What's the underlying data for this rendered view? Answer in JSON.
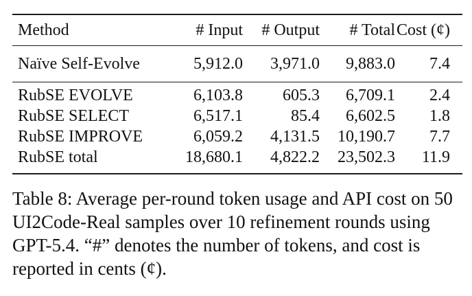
{
  "table": {
    "columns": [
      "Method",
      "# Input",
      "# Output",
      "# Total",
      "Cost (¢)"
    ],
    "group1": [
      {
        "method": "Naïve Self-Evolve",
        "input": "5,912.0",
        "output": "3,971.0",
        "total": "9,883.0",
        "cost": "7.4"
      }
    ],
    "group2": [
      {
        "method": "RubSE EVOLVE",
        "input": "6,103.8",
        "output": "605.3",
        "total": "6,709.1",
        "cost": "2.4"
      },
      {
        "method": "RubSE SELECT",
        "input": "6,517.1",
        "output": "85.4",
        "total": "6,602.5",
        "cost": "1.8"
      },
      {
        "method": "RubSE IMPROVE",
        "input": "6,059.2",
        "output": "4,131.5",
        "total": "10,190.7",
        "cost": "7.7"
      },
      {
        "method": "RubSE total",
        "input": "18,680.1",
        "output": "4,822.2",
        "total": "23,502.3",
        "cost": "11.9"
      }
    ]
  },
  "caption": "Table 8: Average per-round token usage and API cost on 50 UI2Code-Real samples over 10 refinement rounds using GPT-5.4. “#” denotes the number of tokens, and cost is reported in cents (¢)."
}
